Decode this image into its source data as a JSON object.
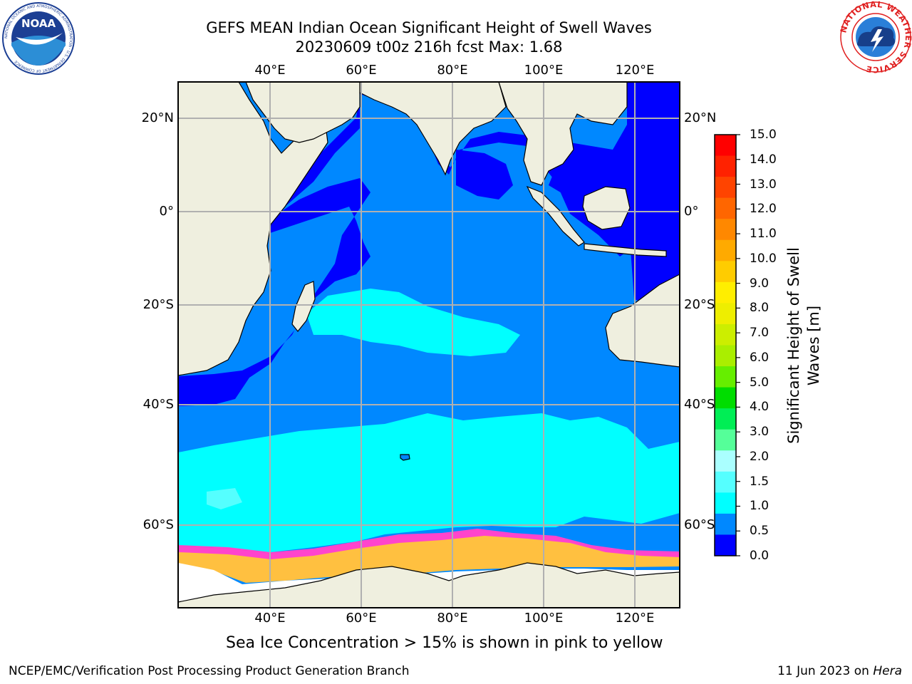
{
  "title_line1": "GEFS MEAN Indian Ocean Significant Height of Swell Waves",
  "title_line2": "20230609 t00z 216h fcst   Max: 1.68",
  "map": {
    "lon_ticks": [
      "40°E",
      "60°E",
      "80°E",
      "100°E",
      "120°E"
    ],
    "lat_ticks": [
      "20°N",
      "0°",
      "20°S",
      "40°S",
      "60°S"
    ]
  },
  "colorbar": {
    "label_line1": "Significant Height of Swell",
    "label_line2": "Waves [m]",
    "ticks": [
      "15.0",
      "14.0",
      "13.0",
      "12.0",
      "11.0",
      "10.0",
      "9.0",
      "8.0",
      "7.0",
      "6.0",
      "5.0",
      "4.0",
      "3.0",
      "2.0",
      "1.5",
      "1.0",
      "0.5",
      "0.0"
    ],
    "colors": [
      "#ff0000",
      "#ff2200",
      "#ff4400",
      "#ff6600",
      "#ff8800",
      "#ffaa00",
      "#ffcc00",
      "#ffee00",
      "#eeee00",
      "#ccee00",
      "#aaee00",
      "#66ee00",
      "#00dd00",
      "#00ee55",
      "#55ff99",
      "#aaffff",
      "#55ffff",
      "#00ffff",
      "#0088ff",
      "#0000ff"
    ]
  },
  "legend_colors": {
    "land": "#efefdf",
    "ocean_low": "#0000ff",
    "ocean_mid": "#0088ff",
    "ocean_high": "#00ffff",
    "ocean_higher": "#55ffff",
    "sea_ice_pink": "#ff44cc",
    "sea_ice_yellow": "#ffc040",
    "ice": "#ffffff"
  },
  "sea_ice_note": "Sea Ice Concentration > 15% is shown in pink to yellow",
  "footer": {
    "left": "NCEP/EMC/Verification Post Processing Product Generation Branch",
    "date": "11 Jun 2023 on ",
    "machine": "Hera"
  },
  "logos": {
    "noaa_text": "NOAA",
    "noaa_ring": "NATIONAL OCEANIC AND ATMOSPHERIC ADMINISTRATION · U.S. DEPARTMENT OF COMMERCE",
    "nws_ring": "NATIONAL WEATHER SERVICE"
  }
}
